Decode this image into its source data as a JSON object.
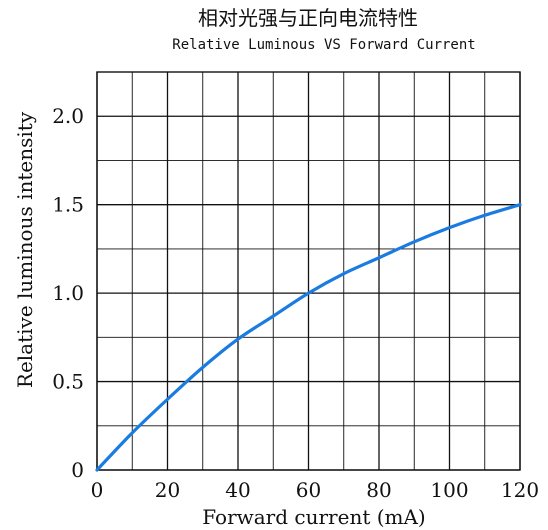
{
  "chart_data": {
    "type": "line",
    "title": "相对光强与正向电流特性",
    "subtitle": "Relative Luminous VS Forward Current",
    "xlabel": "Forward current (mA)",
    "ylabel": "Relative luminous intensity",
    "xlim": [
      0,
      120
    ],
    "ylim": [
      0,
      2.25
    ],
    "x_ticks": [
      "0",
      "20",
      "40",
      "60",
      "80",
      "100",
      "120"
    ],
    "y_ticks": [
      "0",
      "0.5",
      "1.0",
      "1.5",
      "2.0"
    ],
    "grid": true,
    "series": [
      {
        "color": "#1a7be0",
        "x": [
          0,
          10,
          20,
          30,
          40,
          50,
          60,
          70,
          80,
          90,
          100,
          110,
          120
        ],
        "y": [
          0,
          0.21,
          0.4,
          0.58,
          0.74,
          0.87,
          1.0,
          1.11,
          1.2,
          1.29,
          1.37,
          1.44,
          1.5
        ]
      }
    ]
  }
}
